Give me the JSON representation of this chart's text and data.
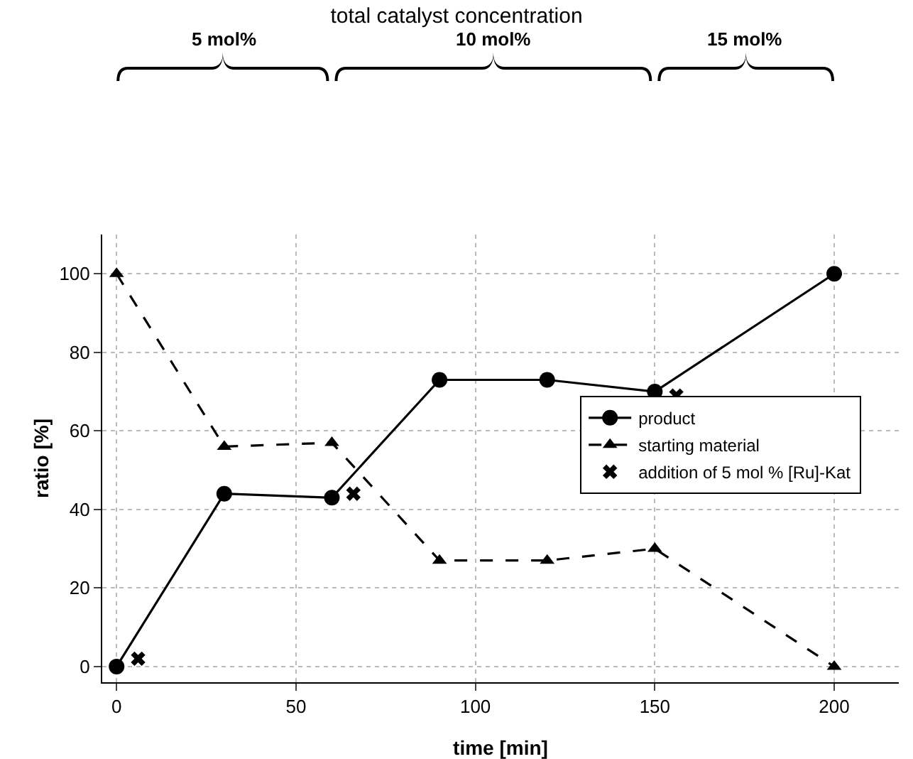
{
  "chart_data": {
    "type": "line",
    "title": "total catalyst concentration",
    "xlabel": "time [min]",
    "ylabel": "ratio [%]",
    "xlim": [
      -4,
      218
    ],
    "xticks": [
      0,
      50,
      100,
      150,
      200
    ],
    "ylim": [
      -4,
      110
    ],
    "yticks": [
      0,
      20,
      40,
      60,
      80,
      100
    ],
    "grid": true,
    "legend": "right",
    "series": [
      {
        "name": "product",
        "color": "#000000",
        "x": [
          0,
          30,
          60,
          90,
          120,
          150,
          200
        ],
        "values": [
          0,
          44,
          43,
          73,
          73,
          70,
          100
        ],
        "marker": "circle",
        "line_style": "solid"
      },
      {
        "name": "starting material",
        "color": "#000000",
        "x": [
          0,
          30,
          60,
          90,
          120,
          150,
          200
        ],
        "values": [
          100,
          56,
          57,
          27,
          27,
          30,
          0
        ],
        "marker": "triangle",
        "line_style": "dashed"
      },
      {
        "name": "addition of 5 mol % [Ru]-Kat",
        "type": "scatter",
        "color": "#000000",
        "x": [
          6,
          66,
          156
        ],
        "values": [
          2,
          44,
          69
        ],
        "marker": "cross"
      }
    ],
    "annotations": [
      "5 mol%",
      "10 mol%",
      "15 mol%"
    ]
  }
}
